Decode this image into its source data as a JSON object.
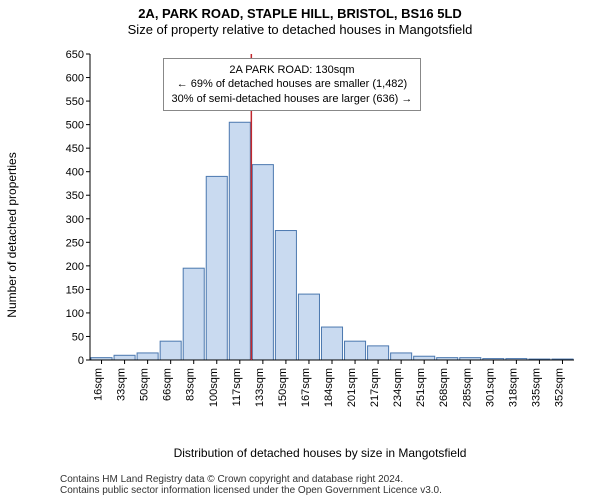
{
  "header": {
    "address": "2A, PARK ROAD, STAPLE HILL, BRISTOL, BS16 5LD",
    "subtitle": "Size of property relative to detached houses in Mangotsfield"
  },
  "y_axis": {
    "label": "Number of detached properties",
    "min": 0,
    "max": 650,
    "step": 50
  },
  "x_axis": {
    "label": "Distribution of detached houses by size in Mangotsfield",
    "categories": [
      "16sqm",
      "33sqm",
      "50sqm",
      "66sqm",
      "83sqm",
      "100sqm",
      "117sqm",
      "133sqm",
      "150sqm",
      "167sqm",
      "184sqm",
      "201sqm",
      "217sqm",
      "234sqm",
      "251sqm",
      "268sqm",
      "285sqm",
      "301sqm",
      "318sqm",
      "335sqm",
      "352sqm"
    ]
  },
  "histogram": {
    "type": "histogram",
    "values": [
      5,
      10,
      15,
      40,
      195,
      390,
      505,
      415,
      275,
      140,
      70,
      40,
      30,
      15,
      8,
      5,
      5,
      3,
      3,
      2,
      2
    ],
    "bar_fill": "#c9daf0",
    "bar_stroke": "#4b78af",
    "bar_stroke_width": 1,
    "background": "#ffffff",
    "axis_color": "#000000",
    "tick_color": "#000000"
  },
  "marker": {
    "x_index": 7,
    "color": "#c1272d",
    "width": 1.5
  },
  "annotation": {
    "line1": "2A PARK ROAD: 130sqm",
    "line2": "← 69% of detached houses are smaller (1,482)",
    "line3": "30% of semi-detached houses are larger (636) →",
    "border": "#888888"
  },
  "credit": {
    "line1": "Contains HM Land Registry data © Crown copyright and database right 2024.",
    "line2": "Contains public sector information licensed under the Open Government Licence v3.0."
  },
  "style": {
    "title_fontsize": 13,
    "axis_label_fontsize": 12,
    "tick_fontsize": 11,
    "annotation_fontsize": 11,
    "credit_fontsize": 10
  }
}
